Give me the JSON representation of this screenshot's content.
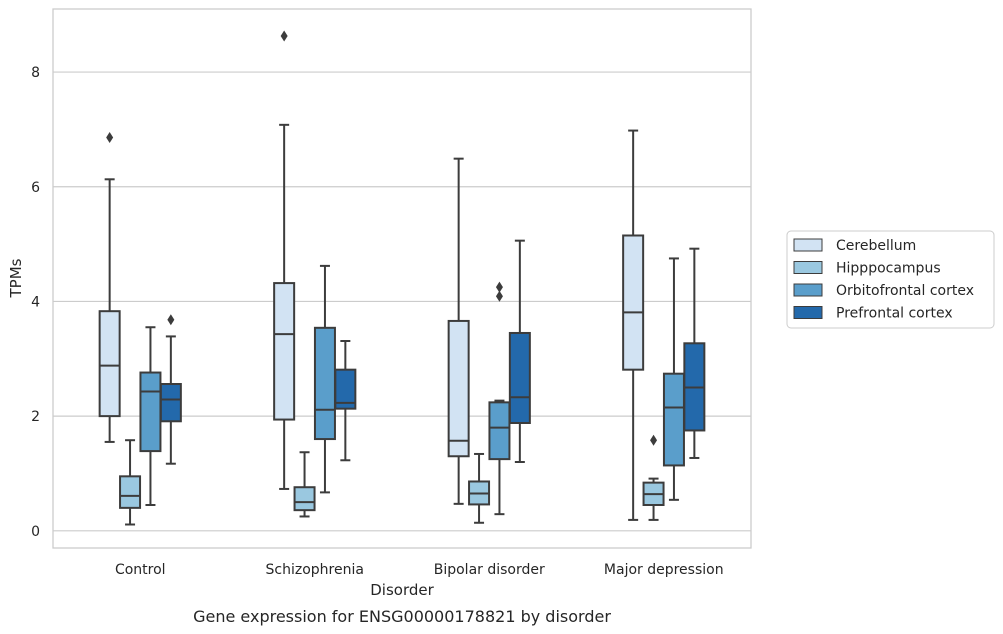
{
  "chart_data": {
    "type": "box",
    "xlabel": "Disorder",
    "ylabel": "TPMs",
    "caption": "Gene expression for ENSG00000178821 by disorder",
    "ylim": [
      -0.3,
      9.1
    ],
    "yticks": [
      0,
      2,
      4,
      6,
      8
    ],
    "grid": "horizontal",
    "legend_position": "right",
    "categories": [
      "Control",
      "Schizophrenia",
      "Bipolar disorder",
      "Major depression"
    ],
    "series": [
      {
        "name": "Cerebellum",
        "color": "#d2e3f3",
        "boxes": [
          {
            "whislo": 1.55,
            "q1": 2.0,
            "med": 2.88,
            "q3": 3.83,
            "whishi": 6.13,
            "fliers": [
              6.86
            ]
          },
          {
            "whislo": 0.73,
            "q1": 1.94,
            "med": 3.43,
            "q3": 4.32,
            "whishi": 7.08,
            "fliers": [
              8.63
            ]
          },
          {
            "whislo": 0.47,
            "q1": 1.3,
            "med": 1.57,
            "q3": 3.66,
            "whishi": 6.49,
            "fliers": []
          },
          {
            "whislo": 0.19,
            "q1": 2.81,
            "med": 3.81,
            "q3": 5.15,
            "whishi": 6.98,
            "fliers": []
          }
        ]
      },
      {
        "name": "Hipppocampus",
        "color": "#9ac8e0",
        "boxes": [
          {
            "whislo": 0.11,
            "q1": 0.4,
            "med": 0.61,
            "q3": 0.95,
            "whishi": 1.58,
            "fliers": []
          },
          {
            "whislo": 0.25,
            "q1": 0.36,
            "med": 0.5,
            "q3": 0.76,
            "whishi": 1.37,
            "fliers": []
          },
          {
            "whislo": 0.14,
            "q1": 0.46,
            "med": 0.65,
            "q3": 0.86,
            "whishi": 1.34,
            "fliers": []
          },
          {
            "whislo": 0.19,
            "q1": 0.45,
            "med": 0.64,
            "q3": 0.84,
            "whishi": 0.91,
            "fliers": [
              1.58
            ]
          }
        ]
      },
      {
        "name": "Orbitofrontal cortex",
        "color": "#5a9ecb",
        "boxes": [
          {
            "whislo": 0.45,
            "q1": 1.39,
            "med": 2.43,
            "q3": 2.76,
            "whishi": 3.55,
            "fliers": []
          },
          {
            "whislo": 0.67,
            "q1": 1.6,
            "med": 2.11,
            "q3": 3.54,
            "whishi": 4.62,
            "fliers": []
          },
          {
            "whislo": 0.29,
            "q1": 1.25,
            "med": 1.8,
            "q3": 2.24,
            "whishi": 2.27,
            "fliers": [
              4.09,
              4.25
            ]
          },
          {
            "whislo": 0.54,
            "q1": 1.14,
            "med": 2.15,
            "q3": 2.74,
            "whishi": 4.75,
            "fliers": []
          }
        ]
      },
      {
        "name": "Prefrontal cortex",
        "color": "#2369ab",
        "boxes": [
          {
            "whislo": 1.17,
            "q1": 1.91,
            "med": 2.29,
            "q3": 2.56,
            "whishi": 3.39,
            "fliers": [
              3.68
            ]
          },
          {
            "whislo": 1.23,
            "q1": 2.13,
            "med": 2.23,
            "q3": 2.81,
            "whishi": 3.31,
            "fliers": []
          },
          {
            "whislo": 1.2,
            "q1": 1.88,
            "med": 2.33,
            "q3": 3.45,
            "whishi": 5.06,
            "fliers": []
          },
          {
            "whislo": 1.27,
            "q1": 1.75,
            "med": 2.5,
            "q3": 3.27,
            "whishi": 4.92,
            "fliers": []
          }
        ]
      }
    ]
  }
}
